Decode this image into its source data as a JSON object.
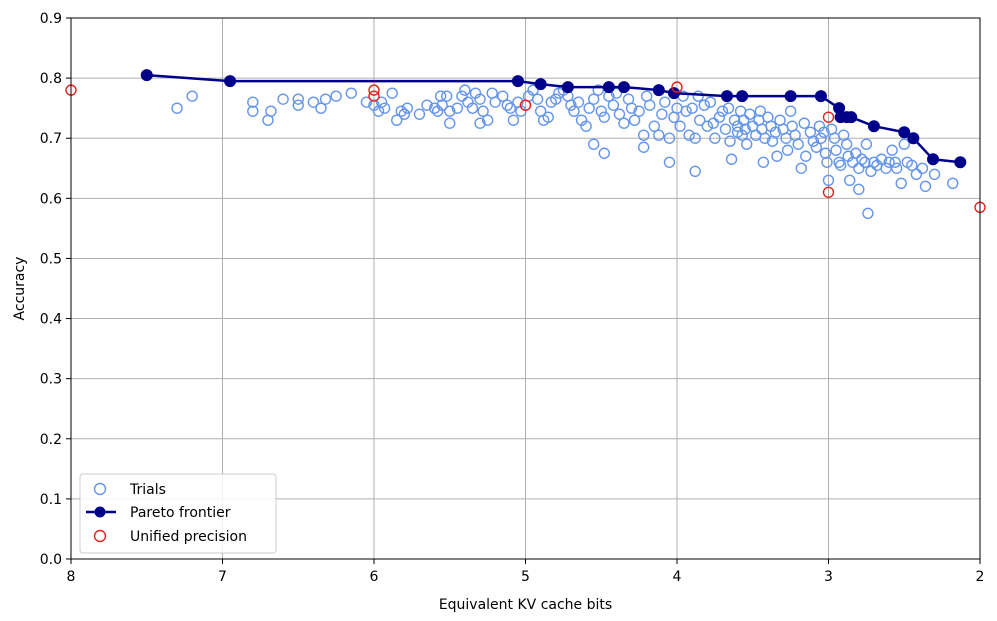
{
  "chart_data": {
    "type": "scatter",
    "title": "",
    "xlabel": "Equivalent KV cache bits",
    "ylabel": "Accuracy",
    "xlim": [
      8,
      2
    ],
    "ylim": [
      0,
      0.9
    ],
    "x_inverted": true,
    "grid": true,
    "legend_position": "lower-left",
    "x_ticks": [
      8,
      7,
      6,
      5,
      4,
      3,
      2
    ],
    "y_ticks": [
      0.0,
      0.1,
      0.2,
      0.3,
      0.4,
      0.5,
      0.6,
      0.7,
      0.8,
      0.9
    ],
    "legend": [
      "Trials",
      "Pareto frontier",
      "Unified precision"
    ],
    "colors": {
      "trials": "#6495ed",
      "pareto": "#00008b",
      "unified": "#e8211c"
    },
    "series": [
      {
        "name": "Trials",
        "style": "hollow-circle",
        "points": [
          [
            7.3,
            0.75
          ],
          [
            7.2,
            0.77
          ],
          [
            6.8,
            0.76
          ],
          [
            6.8,
            0.745
          ],
          [
            6.7,
            0.73
          ],
          [
            6.68,
            0.745
          ],
          [
            6.6,
            0.765
          ],
          [
            6.5,
            0.765
          ],
          [
            6.5,
            0.755
          ],
          [
            6.4,
            0.76
          ],
          [
            6.35,
            0.75
          ],
          [
            6.32,
            0.765
          ],
          [
            6.25,
            0.77
          ],
          [
            6.15,
            0.775
          ],
          [
            6.05,
            0.76
          ],
          [
            6.0,
            0.755
          ],
          [
            5.97,
            0.745
          ],
          [
            5.95,
            0.76
          ],
          [
            5.93,
            0.75
          ],
          [
            5.88,
            0.775
          ],
          [
            5.85,
            0.73
          ],
          [
            5.82,
            0.745
          ],
          [
            5.8,
            0.74
          ],
          [
            5.78,
            0.75
          ],
          [
            5.7,
            0.74
          ],
          [
            5.65,
            0.755
          ],
          [
            5.6,
            0.75
          ],
          [
            5.58,
            0.745
          ],
          [
            5.56,
            0.77
          ],
          [
            5.55,
            0.755
          ],
          [
            5.52,
            0.77
          ],
          [
            5.5,
            0.745
          ],
          [
            5.5,
            0.725
          ],
          [
            5.45,
            0.75
          ],
          [
            5.42,
            0.77
          ],
          [
            5.4,
            0.78
          ],
          [
            5.38,
            0.76
          ],
          [
            5.35,
            0.75
          ],
          [
            5.33,
            0.775
          ],
          [
            5.3,
            0.765
          ],
          [
            5.3,
            0.725
          ],
          [
            5.28,
            0.745
          ],
          [
            5.25,
            0.73
          ],
          [
            5.22,
            0.775
          ],
          [
            5.2,
            0.76
          ],
          [
            5.15,
            0.77
          ],
          [
            5.12,
            0.755
          ],
          [
            5.1,
            0.75
          ],
          [
            5.08,
            0.73
          ],
          [
            5.05,
            0.76
          ],
          [
            5.03,
            0.745
          ],
          [
            5.0,
            0.755
          ],
          [
            4.98,
            0.77
          ],
          [
            4.95,
            0.78
          ],
          [
            4.92,
            0.765
          ],
          [
            4.9,
            0.745
          ],
          [
            4.88,
            0.73
          ],
          [
            4.85,
            0.735
          ],
          [
            4.83,
            0.76
          ],
          [
            4.8,
            0.765
          ],
          [
            4.78,
            0.775
          ],
          [
            4.75,
            0.78
          ],
          [
            4.72,
            0.77
          ],
          [
            4.7,
            0.755
          ],
          [
            4.68,
            0.745
          ],
          [
            4.65,
            0.76
          ],
          [
            4.63,
            0.73
          ],
          [
            4.6,
            0.72
          ],
          [
            4.58,
            0.75
          ],
          [
            4.55,
            0.765
          ],
          [
            4.55,
            0.69
          ],
          [
            4.52,
            0.78
          ],
          [
            4.5,
            0.745
          ],
          [
            4.48,
            0.735
          ],
          [
            4.48,
            0.675
          ],
          [
            4.45,
            0.77
          ],
          [
            4.42,
            0.755
          ],
          [
            4.4,
            0.775
          ],
          [
            4.38,
            0.74
          ],
          [
            4.35,
            0.725
          ],
          [
            4.32,
            0.765
          ],
          [
            4.3,
            0.75
          ],
          [
            4.28,
            0.73
          ],
          [
            4.25,
            0.745
          ],
          [
            4.22,
            0.705
          ],
          [
            4.22,
            0.685
          ],
          [
            4.2,
            0.77
          ],
          [
            4.18,
            0.755
          ],
          [
            4.15,
            0.72
          ],
          [
            4.12,
            0.705
          ],
          [
            4.1,
            0.74
          ],
          [
            4.08,
            0.76
          ],
          [
            4.05,
            0.7
          ],
          [
            4.05,
            0.66
          ],
          [
            4.02,
            0.735
          ],
          [
            4.0,
            0.75
          ],
          [
            3.98,
            0.72
          ],
          [
            3.96,
            0.77
          ],
          [
            3.94,
            0.745
          ],
          [
            3.92,
            0.705
          ],
          [
            3.9,
            0.75
          ],
          [
            3.88,
            0.7
          ],
          [
            3.88,
            0.645
          ],
          [
            3.86,
            0.77
          ],
          [
            3.85,
            0.73
          ],
          [
            3.82,
            0.755
          ],
          [
            3.8,
            0.72
          ],
          [
            3.78,
            0.76
          ],
          [
            3.76,
            0.725
          ],
          [
            3.75,
            0.7
          ],
          [
            3.72,
            0.735
          ],
          [
            3.7,
            0.745
          ],
          [
            3.68,
            0.715
          ],
          [
            3.66,
            0.75
          ],
          [
            3.65,
            0.695
          ],
          [
            3.64,
            0.665
          ],
          [
            3.62,
            0.73
          ],
          [
            3.6,
            0.72
          ],
          [
            3.6,
            0.71
          ],
          [
            3.58,
            0.745
          ],
          [
            3.57,
            0.705
          ],
          [
            3.56,
            0.73
          ],
          [
            3.55,
            0.715
          ],
          [
            3.54,
            0.69
          ],
          [
            3.52,
            0.74
          ],
          [
            3.5,
            0.72
          ],
          [
            3.48,
            0.705
          ],
          [
            3.46,
            0.73
          ],
          [
            3.45,
            0.745
          ],
          [
            3.44,
            0.715
          ],
          [
            3.43,
            0.66
          ],
          [
            3.42,
            0.7
          ],
          [
            3.4,
            0.735
          ],
          [
            3.38,
            0.72
          ],
          [
            3.37,
            0.695
          ],
          [
            3.35,
            0.71
          ],
          [
            3.34,
            0.67
          ],
          [
            3.32,
            0.73
          ],
          [
            3.3,
            0.715
          ],
          [
            3.28,
            0.7
          ],
          [
            3.27,
            0.68
          ],
          [
            3.25,
            0.745
          ],
          [
            3.24,
            0.72
          ],
          [
            3.22,
            0.705
          ],
          [
            3.2,
            0.69
          ],
          [
            3.18,
            0.65
          ],
          [
            3.16,
            0.725
          ],
          [
            3.15,
            0.67
          ],
          [
            3.12,
            0.71
          ],
          [
            3.1,
            0.695
          ],
          [
            3.08,
            0.685
          ],
          [
            3.06,
            0.72
          ],
          [
            3.05,
            0.7
          ],
          [
            3.03,
            0.71
          ],
          [
            3.02,
            0.675
          ],
          [
            3.01,
            0.66
          ],
          [
            3.0,
            0.63
          ],
          [
            2.98,
            0.715
          ],
          [
            2.96,
            0.7
          ],
          [
            2.95,
            0.68
          ],
          [
            2.93,
            0.66
          ],
          [
            2.92,
            0.655
          ],
          [
            2.9,
            0.705
          ],
          [
            2.88,
            0.69
          ],
          [
            2.87,
            0.67
          ],
          [
            2.86,
            0.63
          ],
          [
            2.84,
            0.66
          ],
          [
            2.82,
            0.675
          ],
          [
            2.8,
            0.65
          ],
          [
            2.8,
            0.615
          ],
          [
            2.78,
            0.665
          ],
          [
            2.76,
            0.66
          ],
          [
            2.75,
            0.69
          ],
          [
            2.74,
            0.575
          ],
          [
            2.72,
            0.645
          ],
          [
            2.7,
            0.66
          ],
          [
            2.68,
            0.655
          ],
          [
            2.65,
            0.665
          ],
          [
            2.62,
            0.65
          ],
          [
            2.6,
            0.66
          ],
          [
            2.58,
            0.68
          ],
          [
            2.56,
            0.66
          ],
          [
            2.55,
            0.65
          ],
          [
            2.52,
            0.625
          ],
          [
            2.5,
            0.69
          ],
          [
            2.48,
            0.66
          ],
          [
            2.45,
            0.655
          ],
          [
            2.42,
            0.64
          ],
          [
            2.38,
            0.65
          ],
          [
            2.36,
            0.62
          ],
          [
            2.3,
            0.64
          ],
          [
            2.18,
            0.625
          ]
        ]
      },
      {
        "name": "Pareto frontier",
        "style": "line-with-markers",
        "points": [
          [
            7.5,
            0.805
          ],
          [
            6.95,
            0.795
          ],
          [
            5.05,
            0.795
          ],
          [
            4.9,
            0.79
          ],
          [
            4.72,
            0.785
          ],
          [
            4.45,
            0.785
          ],
          [
            4.35,
            0.785
          ],
          [
            4.12,
            0.78
          ],
          [
            4.02,
            0.775
          ],
          [
            3.67,
            0.77
          ],
          [
            3.57,
            0.77
          ],
          [
            3.25,
            0.77
          ],
          [
            3.05,
            0.77
          ],
          [
            2.93,
            0.75
          ],
          [
            2.92,
            0.735
          ],
          [
            2.88,
            0.735
          ],
          [
            2.85,
            0.735
          ],
          [
            2.7,
            0.72
          ],
          [
            2.5,
            0.71
          ],
          [
            2.44,
            0.7
          ],
          [
            2.31,
            0.665
          ],
          [
            2.13,
            0.66
          ]
        ]
      },
      {
        "name": "Unified precision",
        "style": "hollow-circle",
        "points": [
          [
            8,
            0.78
          ],
          [
            6,
            0.78
          ],
          [
            6,
            0.77
          ],
          [
            5.0,
            0.755
          ],
          [
            4.0,
            0.785
          ],
          [
            3.0,
            0.735
          ],
          [
            3.0,
            0.61
          ],
          [
            2,
            0.585
          ]
        ]
      }
    ]
  }
}
